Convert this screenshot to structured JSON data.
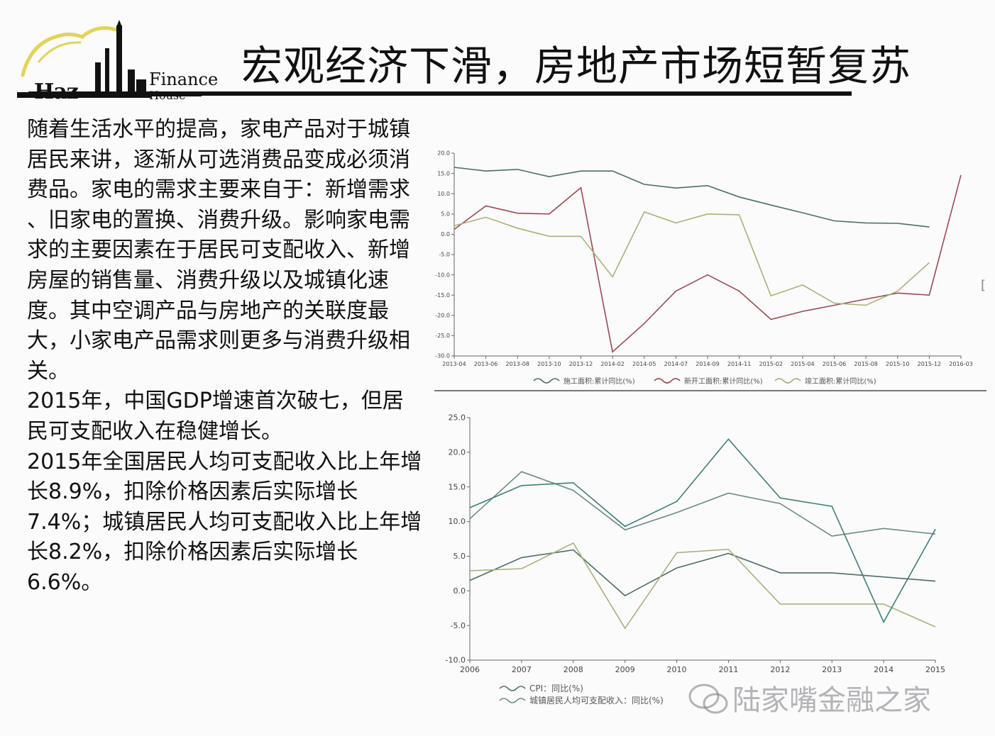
{
  "logo": {
    "text_a": "Haz",
    "text_finance": "Finance",
    "text_house": "House"
  },
  "title": "宏观经济下滑，房地产市场短暂复苏",
  "paragraphs": [
    "随着生活水平的提高，家电产品对于城镇居民来讲，逐渐从可选消费品变成必须消费品。家电的需求主要来自于：新增需求 、旧家电的置换、消费升级。影响家电需求的主要因素在于居民可支配收入、新增房屋的销售量、消费升级以及城镇化速度。其中空调产品与房地产的关联度最大，小家电产品需求则更多与消费升级相关。",
    "2015年，中国GDP增速首次破七，但居民可支配收入在稳健增长。",
    "2015年全国居民人均可支配收入比上年增长8.9%，扣除价格因素后实际增长7.4%；城镇居民人均可支配收入比上年增长8.2%，扣除价格因素后实际增长6.6%。"
  ],
  "watermark": "陆家嘴金融之家",
  "colors": {
    "text": "#111111",
    "series_dark": "#4d6e6a",
    "series_red": "#9a4a52",
    "series_olive": "#a8b27a",
    "series_teal": "#3d7f78"
  },
  "chart_data": [
    {
      "type": "line",
      "x": [
        "2013-04",
        "2013-06",
        "2013-08",
        "2013-10",
        "2013-12",
        "2014-02",
        "2014-05",
        "2014-07",
        "2014-09",
        "2014-11",
        "2015-02",
        "2015-04",
        "2015-06",
        "2015-08",
        "2015-10",
        "2015-12",
        "2016-03"
      ],
      "x_tick_labels": [
        "2013-04",
        "2013-06",
        "2013-08",
        "2013-10",
        "2013-12",
        "2014-02",
        "2014-05",
        "2014-07",
        "2014-09",
        "2014-11",
        "2015-02",
        "2015-04",
        "2015-06",
        "2015-08",
        "2015-10",
        "2015-12",
        "2016-03"
      ],
      "ylim": [
        -30,
        20
      ],
      "y_ticks": [
        -30,
        -25,
        -20,
        -15,
        -10,
        -5,
        0,
        5,
        10,
        15,
        20
      ],
      "y_tick_labels": [
        "-30.0",
        "-25.0",
        "-20.0",
        "-15.0",
        "-10.0",
        "-5.0",
        "0.0",
        "5.0",
        "10.0",
        "15.0",
        "20.0"
      ],
      "series": [
        {
          "name": "施工面积:累计同比(%)",
          "color": "#4d6e6a",
          "values": [
            16.5,
            15.6,
            16.0,
            14.2,
            15.6,
            15.6,
            12.3,
            11.4,
            12.0,
            9.2,
            7.2,
            5.3,
            3.3,
            2.8,
            2.7,
            1.8,
            null
          ]
        },
        {
          "name": "新开工面积:累计同比(%)",
          "color": "#9a4a52",
          "values": [
            1.2,
            7.0,
            5.2,
            5.0,
            11.5,
            -29.0,
            -22.0,
            -14.0,
            -10.0,
            -14.0,
            -21.0,
            -19.0,
            -17.5,
            -16.0,
            -14.5,
            -15.0,
            14.6
          ]
        },
        {
          "name": "竣工面积:累计同比(%)",
          "color": "#a8b27a",
          "values": [
            2.1,
            4.2,
            1.5,
            -0.5,
            -0.5,
            -10.5,
            5.5,
            2.8,
            5.0,
            4.8,
            -15.2,
            -12.5,
            -17.0,
            -17.5,
            -14.0,
            -7.0,
            null
          ]
        }
      ]
    },
    {
      "type": "line",
      "x": [
        "2006",
        "2007",
        "2008",
        "2009",
        "2010",
        "2011",
        "2012",
        "2013",
        "2014",
        "2015"
      ],
      "ylim": [
        -10,
        25
      ],
      "y_ticks": [
        -10,
        -5,
        0,
        5,
        10,
        15,
        20,
        25
      ],
      "y_tick_labels": [
        "-10.0",
        "-5.0",
        "0.0",
        "5.0",
        "10.0",
        "15.0",
        "20.0",
        "25.0"
      ],
      "series": [
        {
          "name": "CPI：同比(%)",
          "color": "#4d6e6a",
          "values": [
            1.5,
            4.8,
            5.9,
            -0.7,
            3.3,
            5.4,
            2.6,
            2.6,
            2.0,
            1.4
          ]
        },
        {
          "name": "城镇居民人均可支配收入：同比(%)",
          "color": "#6b8b83",
          "values": [
            10.4,
            17.2,
            14.5,
            8.8,
            11.3,
            14.1,
            12.6,
            7.9,
            9.0,
            8.2
          ]
        },
        {
          "name": "",
          "color": "#a8b27a",
          "values": [
            2.9,
            3.2,
            6.9,
            -5.4,
            5.5,
            6.0,
            -1.9,
            -1.9,
            -1.9,
            -5.2
          ]
        },
        {
          "name": "",
          "color": "#3d7f78",
          "values": [
            12.0,
            15.2,
            15.6,
            9.3,
            12.9,
            21.9,
            13.4,
            12.2,
            -4.5,
            8.9
          ]
        }
      ]
    }
  ]
}
